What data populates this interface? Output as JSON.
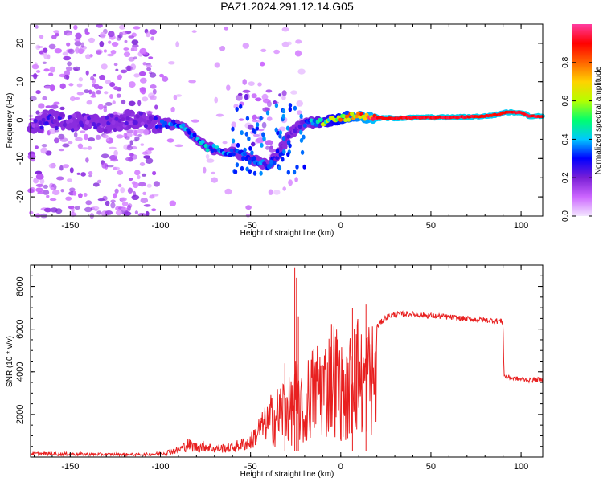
{
  "figure_title": "PAZ1.2024.291.12.14.G05",
  "chart_data": [
    {
      "type": "heatmap",
      "xlabel": "Height of straight line (km)",
      "ylabel": "Frequency (Hz)",
      "xlim": [
        -172,
        112
      ],
      "ylim": [
        -25,
        25
      ],
      "x_ticks": [
        -150,
        -100,
        -50,
        0,
        50,
        100
      ],
      "y_ticks": [
        -20,
        -10,
        0,
        10,
        20
      ],
      "colorbar": {
        "label": "Normalized spectral amplitude",
        "range": [
          0,
          1
        ],
        "ticks": [
          "0.0",
          "0.2",
          "0.4",
          "0.6",
          "0.8"
        ],
        "tick_values": [
          0.0,
          0.2,
          0.4,
          0.6,
          0.8
        ],
        "colors": [
          "#f3e6ff",
          "#cc66ff",
          "#7a1fd6",
          "#0000ff",
          "#00c8ff",
          "#00ff6e",
          "#b4ff00",
          "#ffd200",
          "#ff6400",
          "#ff0000",
          "#ff3ca0"
        ]
      },
      "ridge": {
        "x": [
          -168,
          -160,
          -150,
          -140,
          -130,
          -120,
          -110,
          -100,
          -95,
          -90,
          -85,
          -80,
          -75,
          -70,
          -65,
          -60,
          -55,
          -50,
          -45,
          -40,
          -35,
          -30,
          -25,
          -20,
          -15,
          -10,
          -5,
          0,
          5,
          10,
          15,
          20,
          30,
          40,
          50,
          60,
          70,
          80,
          88,
          90,
          95,
          100,
          105,
          110
        ],
        "frequency_hz": [
          -1,
          0,
          -1,
          0,
          -1,
          0,
          0,
          -1,
          -1,
          -1,
          -3,
          -5,
          -7,
          -7.5,
          -8,
          -8.5,
          -9,
          -10,
          -11,
          -12,
          -9,
          -5,
          -2,
          -1,
          -0.5,
          -0.5,
          0,
          0.5,
          0.8,
          1,
          0.5,
          0.5,
          0.5,
          0.6,
          0.7,
          0.7,
          0.8,
          1.0,
          1.5,
          2.0,
          2.0,
          2.0,
          1.0,
          1.0
        ],
        "amplitude": [
          0.2,
          0.25,
          0.2,
          0.2,
          0.2,
          0.2,
          0.2,
          0.28,
          0.35,
          0.35,
          0.38,
          0.4,
          0.38,
          0.35,
          0.38,
          0.35,
          0.3,
          0.32,
          0.33,
          0.3,
          0.25,
          0.2,
          0.2,
          0.3,
          0.45,
          0.55,
          0.6,
          0.7,
          0.75,
          0.82,
          0.85,
          0.9,
          0.9,
          0.92,
          0.92,
          0.92,
          0.92,
          0.9,
          0.9,
          0.88,
          0.92,
          0.92,
          0.92,
          0.92
        ]
      }
    },
    {
      "type": "line",
      "xlabel": "Height of straight line (km)",
      "ylabel": "SNR (10 * v/v)",
      "xlim": [
        -172,
        112
      ],
      "ylim": [
        0,
        9000
      ],
      "x_ticks": [
        -150,
        -100,
        -50,
        0,
        50,
        100
      ],
      "y_ticks": [
        2000,
        4000,
        6000,
        8000
      ],
      "line_color": "#e82020",
      "envelope": {
        "x": [
          -172,
          -140,
          -110,
          -100,
          -90,
          -85,
          -80,
          -75,
          -70,
          -60,
          -55,
          -50,
          -45,
          -40,
          -35,
          -30,
          -28,
          -25,
          -22,
          -20,
          -18,
          -15,
          -12,
          -8,
          -5,
          -2,
          0,
          3,
          6,
          9,
          12,
          15,
          18,
          22,
          25,
          28,
          32,
          38,
          45,
          55,
          65,
          75,
          85,
          90,
          90.5,
          95,
          100,
          105,
          112
        ],
        "y": [
          250,
          200,
          180,
          250,
          500,
          900,
          700,
          800,
          600,
          700,
          900,
          1100,
          2000,
          2600,
          3100,
          3900,
          3200,
          4300,
          3600,
          2500,
          4400,
          4900,
          5300,
          5200,
          6200,
          5800,
          5000,
          4300,
          5700,
          6400,
          5400,
          6100,
          5900,
          6300,
          6550,
          6650,
          6700,
          6720,
          6650,
          6600,
          6520,
          6450,
          6400,
          6350,
          3800,
          3700,
          3650,
          3600,
          3650
        ]
      },
      "spikes": [
        {
          "x": -25.5,
          "y": 8900
        },
        {
          "x": -24.5,
          "y": 8400
        },
        {
          "x": -23.5,
          "y": 6600
        },
        {
          "x": -31,
          "y": 4400
        },
        {
          "x": 6.5,
          "y": 7000
        },
        {
          "x": 14,
          "y": 7150
        },
        {
          "x": 7.5,
          "y": 2450
        }
      ]
    }
  ]
}
